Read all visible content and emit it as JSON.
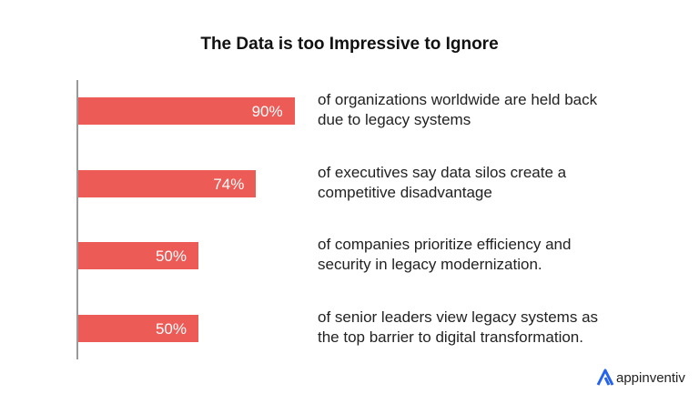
{
  "chart_data": {
    "type": "bar",
    "orientation": "horizontal",
    "title": "The Data is too Impressive to Ignore",
    "values": [
      90,
      74,
      50,
      50
    ],
    "value_labels": [
      "90%",
      "74%",
      "50%",
      "50%"
    ],
    "categories": [
      "of organizations worldwide are held back due to legacy systems",
      "of executives say data silos create a competitive disadvantage",
      "of companies prioritize efficiency and security in legacy modernization.",
      "of senior leaders view legacy systems as the top barrier to digital transformation."
    ],
    "xlim": [
      0,
      100
    ],
    "grid": false,
    "bar_color": "#ec5b56"
  },
  "brand": {
    "name": "appinventiv",
    "color": "#2563eb"
  }
}
